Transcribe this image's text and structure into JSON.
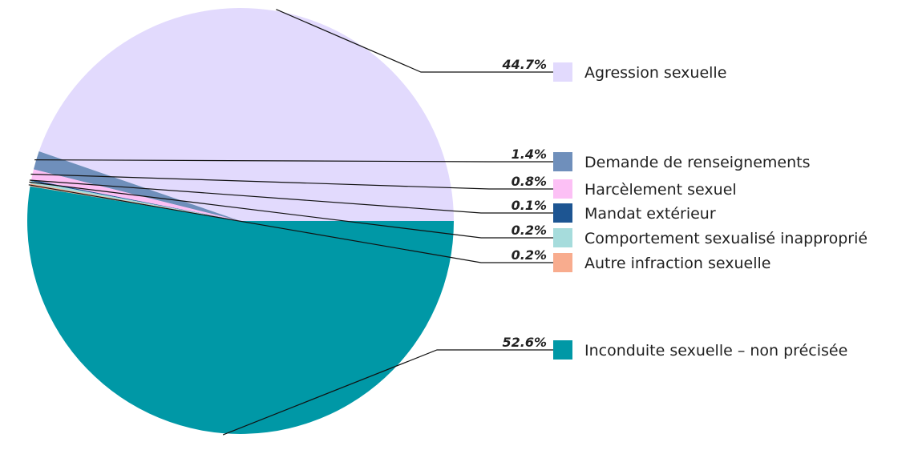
{
  "chart_data": {
    "type": "pie",
    "start_angle_deg": 0,
    "direction": "counterclockwise",
    "slices": [
      {
        "label": "Agression sexuelle",
        "value": 44.7,
        "value_label": "44.7%",
        "color": "#e2dafd"
      },
      {
        "label": "Demande de renseignements",
        "value": 1.4,
        "value_label": "1.4%",
        "color": "#6f8fbb"
      },
      {
        "label": "Harcèlement sexuel",
        "value": 0.8,
        "value_label": "0.8%",
        "color": "#fcc0f5"
      },
      {
        "label": "Mandat extérieur",
        "value": 0.1,
        "value_label": "0.1%",
        "color": "#1d5592"
      },
      {
        "label": "Comportement sexualisé inapproprié",
        "value": 0.2,
        "value_label": "0.2%",
        "color": "#a6dcdc"
      },
      {
        "label": "Autre infraction sexuelle",
        "value": 0.2,
        "value_label": "0.2%",
        "color": "#f8ac8e"
      },
      {
        "label": "Inconduite sexuelle – non précisée",
        "value": 52.6,
        "value_label": "52.6%",
        "color": "#0098a6"
      }
    ]
  }
}
